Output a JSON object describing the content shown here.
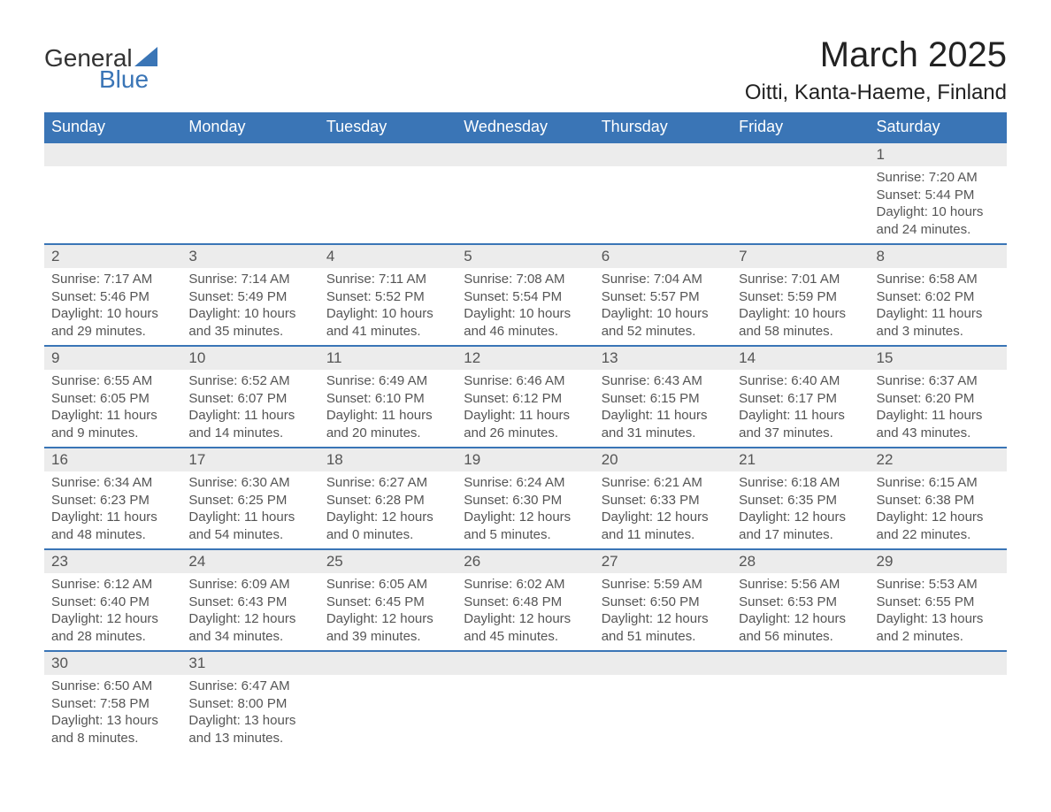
{
  "logo": {
    "text_general": "General",
    "text_blue": "Blue",
    "triangle_color": "#3a75b6"
  },
  "header": {
    "month_title": "March 2025",
    "location": "Oitti, Kanta-Haeme, Finland"
  },
  "colors": {
    "header_bg": "#3a75b6",
    "header_text": "#ffffff",
    "day_number_bg": "#ececec",
    "border": "#3a75b6",
    "text": "#555555",
    "background": "#ffffff"
  },
  "weekdays": [
    "Sunday",
    "Monday",
    "Tuesday",
    "Wednesday",
    "Thursday",
    "Friday",
    "Saturday"
  ],
  "weeks": [
    [
      {
        "empty": true
      },
      {
        "empty": true
      },
      {
        "empty": true
      },
      {
        "empty": true
      },
      {
        "empty": true
      },
      {
        "empty": true
      },
      {
        "day": "1",
        "sunrise": "Sunrise: 7:20 AM",
        "sunset": "Sunset: 5:44 PM",
        "daylight1": "Daylight: 10 hours",
        "daylight2": "and 24 minutes."
      }
    ],
    [
      {
        "day": "2",
        "sunrise": "Sunrise: 7:17 AM",
        "sunset": "Sunset: 5:46 PM",
        "daylight1": "Daylight: 10 hours",
        "daylight2": "and 29 minutes."
      },
      {
        "day": "3",
        "sunrise": "Sunrise: 7:14 AM",
        "sunset": "Sunset: 5:49 PM",
        "daylight1": "Daylight: 10 hours",
        "daylight2": "and 35 minutes."
      },
      {
        "day": "4",
        "sunrise": "Sunrise: 7:11 AM",
        "sunset": "Sunset: 5:52 PM",
        "daylight1": "Daylight: 10 hours",
        "daylight2": "and 41 minutes."
      },
      {
        "day": "5",
        "sunrise": "Sunrise: 7:08 AM",
        "sunset": "Sunset: 5:54 PM",
        "daylight1": "Daylight: 10 hours",
        "daylight2": "and 46 minutes."
      },
      {
        "day": "6",
        "sunrise": "Sunrise: 7:04 AM",
        "sunset": "Sunset: 5:57 PM",
        "daylight1": "Daylight: 10 hours",
        "daylight2": "and 52 minutes."
      },
      {
        "day": "7",
        "sunrise": "Sunrise: 7:01 AM",
        "sunset": "Sunset: 5:59 PM",
        "daylight1": "Daylight: 10 hours",
        "daylight2": "and 58 minutes."
      },
      {
        "day": "8",
        "sunrise": "Sunrise: 6:58 AM",
        "sunset": "Sunset: 6:02 PM",
        "daylight1": "Daylight: 11 hours",
        "daylight2": "and 3 minutes."
      }
    ],
    [
      {
        "day": "9",
        "sunrise": "Sunrise: 6:55 AM",
        "sunset": "Sunset: 6:05 PM",
        "daylight1": "Daylight: 11 hours",
        "daylight2": "and 9 minutes."
      },
      {
        "day": "10",
        "sunrise": "Sunrise: 6:52 AM",
        "sunset": "Sunset: 6:07 PM",
        "daylight1": "Daylight: 11 hours",
        "daylight2": "and 14 minutes."
      },
      {
        "day": "11",
        "sunrise": "Sunrise: 6:49 AM",
        "sunset": "Sunset: 6:10 PM",
        "daylight1": "Daylight: 11 hours",
        "daylight2": "and 20 minutes."
      },
      {
        "day": "12",
        "sunrise": "Sunrise: 6:46 AM",
        "sunset": "Sunset: 6:12 PM",
        "daylight1": "Daylight: 11 hours",
        "daylight2": "and 26 minutes."
      },
      {
        "day": "13",
        "sunrise": "Sunrise: 6:43 AM",
        "sunset": "Sunset: 6:15 PM",
        "daylight1": "Daylight: 11 hours",
        "daylight2": "and 31 minutes."
      },
      {
        "day": "14",
        "sunrise": "Sunrise: 6:40 AM",
        "sunset": "Sunset: 6:17 PM",
        "daylight1": "Daylight: 11 hours",
        "daylight2": "and 37 minutes."
      },
      {
        "day": "15",
        "sunrise": "Sunrise: 6:37 AM",
        "sunset": "Sunset: 6:20 PM",
        "daylight1": "Daylight: 11 hours",
        "daylight2": "and 43 minutes."
      }
    ],
    [
      {
        "day": "16",
        "sunrise": "Sunrise: 6:34 AM",
        "sunset": "Sunset: 6:23 PM",
        "daylight1": "Daylight: 11 hours",
        "daylight2": "and 48 minutes."
      },
      {
        "day": "17",
        "sunrise": "Sunrise: 6:30 AM",
        "sunset": "Sunset: 6:25 PM",
        "daylight1": "Daylight: 11 hours",
        "daylight2": "and 54 minutes."
      },
      {
        "day": "18",
        "sunrise": "Sunrise: 6:27 AM",
        "sunset": "Sunset: 6:28 PM",
        "daylight1": "Daylight: 12 hours",
        "daylight2": "and 0 minutes."
      },
      {
        "day": "19",
        "sunrise": "Sunrise: 6:24 AM",
        "sunset": "Sunset: 6:30 PM",
        "daylight1": "Daylight: 12 hours",
        "daylight2": "and 5 minutes."
      },
      {
        "day": "20",
        "sunrise": "Sunrise: 6:21 AM",
        "sunset": "Sunset: 6:33 PM",
        "daylight1": "Daylight: 12 hours",
        "daylight2": "and 11 minutes."
      },
      {
        "day": "21",
        "sunrise": "Sunrise: 6:18 AM",
        "sunset": "Sunset: 6:35 PM",
        "daylight1": "Daylight: 12 hours",
        "daylight2": "and 17 minutes."
      },
      {
        "day": "22",
        "sunrise": "Sunrise: 6:15 AM",
        "sunset": "Sunset: 6:38 PM",
        "daylight1": "Daylight: 12 hours",
        "daylight2": "and 22 minutes."
      }
    ],
    [
      {
        "day": "23",
        "sunrise": "Sunrise: 6:12 AM",
        "sunset": "Sunset: 6:40 PM",
        "daylight1": "Daylight: 12 hours",
        "daylight2": "and 28 minutes."
      },
      {
        "day": "24",
        "sunrise": "Sunrise: 6:09 AM",
        "sunset": "Sunset: 6:43 PM",
        "daylight1": "Daylight: 12 hours",
        "daylight2": "and 34 minutes."
      },
      {
        "day": "25",
        "sunrise": "Sunrise: 6:05 AM",
        "sunset": "Sunset: 6:45 PM",
        "daylight1": "Daylight: 12 hours",
        "daylight2": "and 39 minutes."
      },
      {
        "day": "26",
        "sunrise": "Sunrise: 6:02 AM",
        "sunset": "Sunset: 6:48 PM",
        "daylight1": "Daylight: 12 hours",
        "daylight2": "and 45 minutes."
      },
      {
        "day": "27",
        "sunrise": "Sunrise: 5:59 AM",
        "sunset": "Sunset: 6:50 PM",
        "daylight1": "Daylight: 12 hours",
        "daylight2": "and 51 minutes."
      },
      {
        "day": "28",
        "sunrise": "Sunrise: 5:56 AM",
        "sunset": "Sunset: 6:53 PM",
        "daylight1": "Daylight: 12 hours",
        "daylight2": "and 56 minutes."
      },
      {
        "day": "29",
        "sunrise": "Sunrise: 5:53 AM",
        "sunset": "Sunset: 6:55 PM",
        "daylight1": "Daylight: 13 hours",
        "daylight2": "and 2 minutes."
      }
    ],
    [
      {
        "day": "30",
        "sunrise": "Sunrise: 6:50 AM",
        "sunset": "Sunset: 7:58 PM",
        "daylight1": "Daylight: 13 hours",
        "daylight2": "and 8 minutes."
      },
      {
        "day": "31",
        "sunrise": "Sunrise: 6:47 AM",
        "sunset": "Sunset: 8:00 PM",
        "daylight1": "Daylight: 13 hours",
        "daylight2": "and 13 minutes."
      },
      {
        "empty": true
      },
      {
        "empty": true
      },
      {
        "empty": true
      },
      {
        "empty": true
      },
      {
        "empty": true
      }
    ]
  ]
}
